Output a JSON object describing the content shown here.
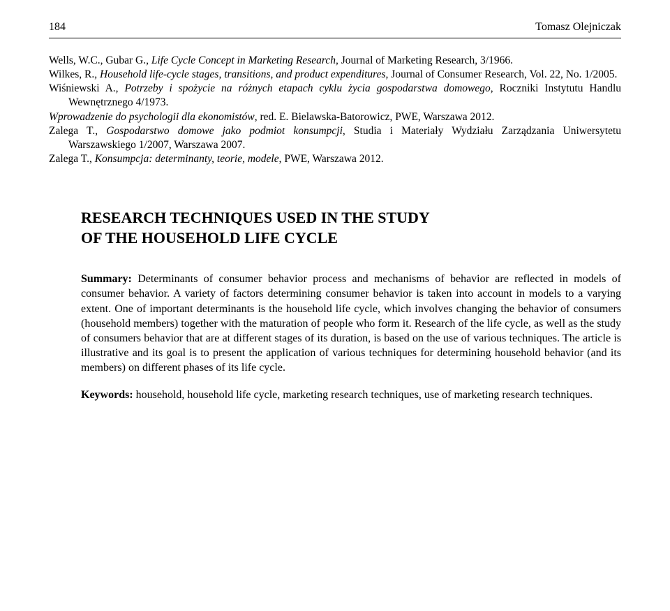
{
  "header": {
    "page_number": "184",
    "author": "Tomasz Olejniczak"
  },
  "bibliography": {
    "entries": [
      {
        "prefix": "Wells, W.C., Gubar G., ",
        "title_italic": "Life Cycle Concept in Marketing Research",
        "suffix": ", Journal of Marketing Research, 3/1966."
      },
      {
        "prefix": "Wilkes, R., ",
        "title_italic": "Household life-cycle stages, transitions, and product expenditures",
        "suffix": ", Journal of Consumer Research, Vol. 22, No. 1/2005."
      },
      {
        "prefix": "Wiśniewski A., ",
        "title_italic": "Potrzeby i spożycie na różnych etapach cyklu życia gospodarstwa domowego",
        "suffix": ", Roczniki Instytutu Handlu Wewnętrznego 4/1973."
      },
      {
        "prefix": "",
        "title_italic": "Wprowadzenie do psychologii dla ekonomistów",
        "suffix": ", red. E. Bielawska-Batorowicz, PWE, Warszawa 2012."
      },
      {
        "prefix": "Zalega T., ",
        "title_italic": "Gospodarstwo domowe jako podmiot konsumpcji",
        "suffix": ", Studia i Materiały Wydziału Zarządzania Uniwersytetu Warszawskiego 1/2007, Warszawa 2007."
      },
      {
        "prefix": "Zalega T., ",
        "title_italic": "Konsumpcja: determinanty, teorie, modele",
        "suffix": ", PWE, Warszawa 2012."
      }
    ]
  },
  "article": {
    "title_line1": "RESEARCH TECHNIQUES USED IN THE STUDY",
    "title_line2": "OF THE HOUSEHOLD LIFE CYCLE",
    "summary_label": "Summary:",
    "summary_text": "Determinants of consumer behavior process and mechanisms of behavior are reflected in models of consumer behavior. A variety of factors determining consumer behavior is taken into account in models to a varying extent. One of important determinants is the household life cycle, which involves changing the behavior of consumers (household members) together with the maturation of people who form it. Research of the life cycle, as well as the study of consumers behavior that are at different stages of its duration, is based on the use of various techniques. The article is illustrative and its goal is to present the application of various techniques for determining household behavior (and its members) on different phases of its life cycle.",
    "keywords_label": "Keywords:",
    "keywords_text": "household, household life cycle, marketing research techniques, use of marketing research techniques."
  },
  "typography": {
    "body_font_family": "Georgia, Times New Roman, serif",
    "body_font_size": 16,
    "bib_font_size": 15.5,
    "title_font_size": 22,
    "background_color": "#ffffff",
    "text_color": "#000000",
    "line_height": 1.32
  }
}
